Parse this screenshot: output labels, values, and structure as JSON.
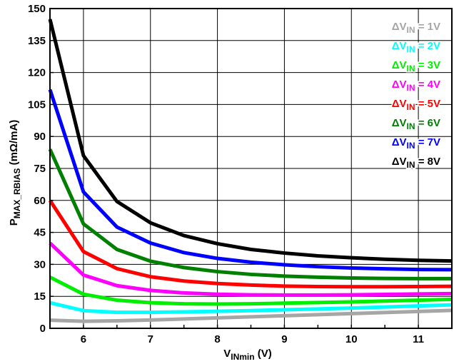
{
  "chart_data": {
    "type": "line",
    "xlabel": "V",
    "xlabel_sub": "INmin",
    "xlabel_suffix": " (V)",
    "ylabel": "P",
    "ylabel_sub": "MAX_RBIAS",
    "ylabel_suffix": " (mΩ/mA)",
    "xlim": [
      5.5,
      11.5
    ],
    "ylim": [
      0,
      150
    ],
    "x_ticks": [
      6,
      7,
      8,
      9,
      10,
      11
    ],
    "x_tick_labels": [
      "6",
      "7",
      "8",
      "9",
      "10",
      "11"
    ],
    "y_ticks": [
      0,
      15,
      30,
      45,
      60,
      75,
      90,
      105,
      120,
      135,
      150
    ],
    "y_tick_labels": [
      "0",
      "15",
      "30",
      "45",
      "60",
      "75",
      "90",
      "105",
      "120",
      "135",
      "150"
    ],
    "x_minor_step": 0.5,
    "grid": true,
    "legend_position": "top-right",
    "x": [
      5.5,
      6,
      6.5,
      7,
      7.5,
      8,
      8.5,
      9,
      9.5,
      10,
      10.5,
      11,
      11.5
    ],
    "series": [
      {
        "name": "ΔV",
        "name_sub": "IN",
        "name_suffix": " = 1V",
        "color": "#a6a6a6",
        "values": [
          3.8,
          3.3,
          3.5,
          3.9,
          4.4,
          4.9,
          5.4,
          5.9,
          6.4,
          6.9,
          7.4,
          7.9,
          8.4
        ]
      },
      {
        "name": "ΔV",
        "name_sub": "IN",
        "name_suffix": " = 2V",
        "color": "#00ffff",
        "values": [
          12.0,
          8.3,
          7.5,
          7.5,
          7.7,
          8.0,
          8.3,
          8.7,
          9.1,
          9.5,
          10.0,
          10.5,
          11.0
        ]
      },
      {
        "name": "ΔV",
        "name_sub": "IN",
        "name_suffix": " = 3V",
        "color": "#00ee00",
        "values": [
          24.0,
          16.0,
          13.2,
          12.0,
          11.5,
          11.4,
          11.5,
          11.8,
          12.1,
          12.4,
          12.8,
          13.2,
          13.6
        ]
      },
      {
        "name": "ΔV",
        "name_sub": "IN",
        "name_suffix": " = 4V",
        "color": "#ff00ff",
        "values": [
          40.0,
          25.0,
          20.0,
          17.8,
          16.6,
          16.0,
          15.7,
          15.6,
          15.6,
          15.7,
          15.9,
          16.1,
          16.3
        ]
      },
      {
        "name": "ΔV",
        "name_sub": "IN",
        "name_suffix": " = 5V",
        "color": "#ff0000",
        "values": [
          60.0,
          36.0,
          28.0,
          24.2,
          22.2,
          21.0,
          20.3,
          19.8,
          19.6,
          19.5,
          19.5,
          19.6,
          19.7
        ]
      },
      {
        "name": "ΔV",
        "name_sub": "IN",
        "name_suffix": " = 6V",
        "color": "#008000",
        "values": [
          84.0,
          49.0,
          37.0,
          31.5,
          28.5,
          26.6,
          25.3,
          24.5,
          24.0,
          23.6,
          23.4,
          23.3,
          23.3
        ]
      },
      {
        "name": "ΔV",
        "name_sub": "IN",
        "name_suffix": " = 7V",
        "color": "#0000ff",
        "values": [
          112.0,
          64.0,
          47.5,
          40.0,
          35.5,
          32.8,
          31.0,
          29.8,
          28.9,
          28.3,
          27.9,
          27.6,
          27.5
        ]
      },
      {
        "name": "ΔV",
        "name_sub": "IN",
        "name_suffix": " = 8V",
        "color": "#000000",
        "values": [
          145.0,
          81.0,
          59.5,
          49.5,
          43.5,
          39.7,
          37.0,
          35.3,
          34.0,
          33.1,
          32.4,
          31.9,
          31.6
        ]
      }
    ]
  }
}
